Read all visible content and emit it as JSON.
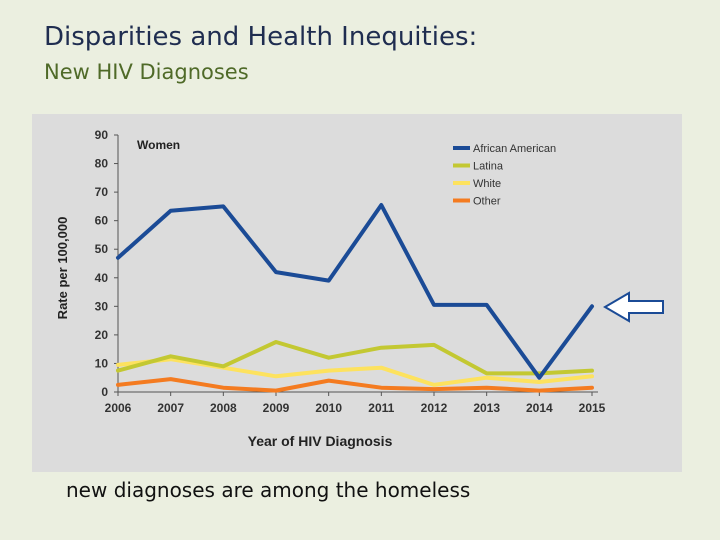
{
  "slide": {
    "title": "Disparities and Health Inequities:",
    "subtitle": "New HIV Diagnoses",
    "caption": "new diagnoses are among the homeless"
  },
  "chart_data": {
    "type": "line",
    "title": "Women",
    "xlabel": "Year of HIV Diagnosis",
    "ylabel": "Rate per 100,000",
    "ylim": [
      0,
      90
    ],
    "yticks": [
      0,
      10,
      20,
      30,
      40,
      50,
      60,
      70,
      80,
      90
    ],
    "x": [
      "2006",
      "2007",
      "2008",
      "2009",
      "2010",
      "2011",
      "2012",
      "2013",
      "2014",
      "2015"
    ],
    "legend_position": "top-right",
    "series": [
      {
        "name": "African American",
        "color": "#1b4b96",
        "values": [
          47,
          63.5,
          65,
          42,
          39,
          65.5,
          30.5,
          30.5,
          5,
          30
        ]
      },
      {
        "name": "Latina",
        "color": "#c3c832",
        "values": [
          7.5,
          12.5,
          9,
          17.5,
          12,
          15.5,
          16.5,
          6.5,
          6.5,
          7.5
        ]
      },
      {
        "name": "White",
        "color": "#fde25e",
        "values": [
          9.5,
          11.5,
          8.5,
          5.5,
          7.5,
          8.5,
          2.5,
          5,
          3.5,
          5.5
        ]
      },
      {
        "name": "Other",
        "color": "#f47b20",
        "values": [
          2.5,
          4.5,
          1.5,
          0.5,
          4,
          1.5,
          1,
          1.5,
          0.5,
          1.5
        ]
      }
    ],
    "annotation": {
      "type": "arrow",
      "direction": "left",
      "color": "#1b4b96"
    }
  }
}
